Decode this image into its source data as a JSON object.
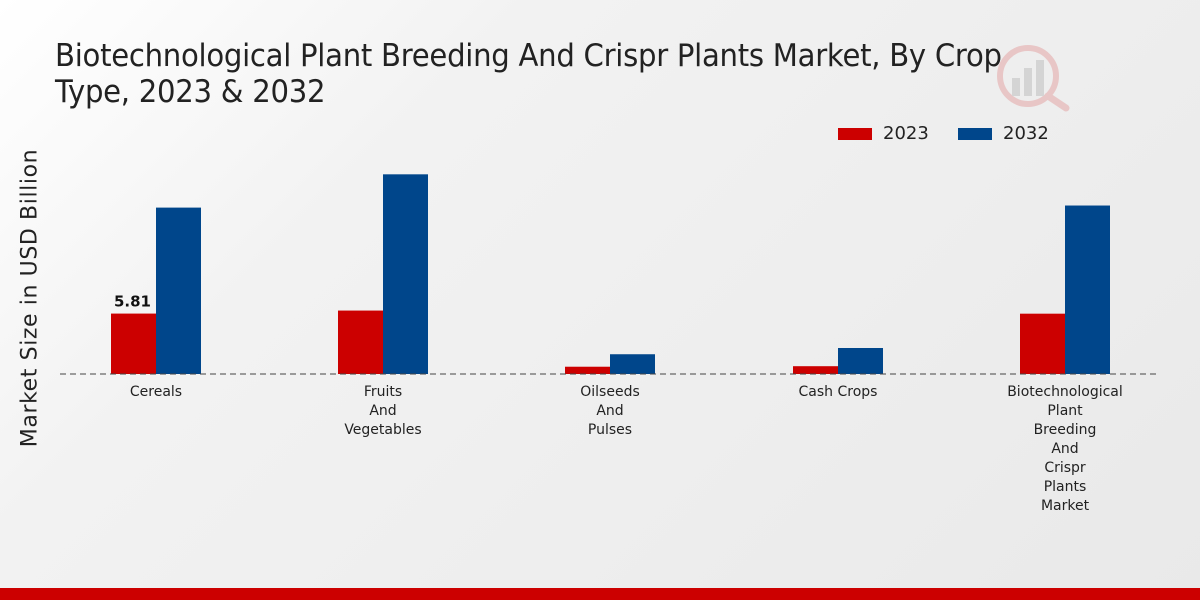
{
  "chart_data": {
    "type": "bar",
    "title": "Biotechnological Plant Breeding And Crispr Plants Market, By Crop Type, 2023 & 2032",
    "xlabel": "",
    "ylabel": "Market Size in USD Billion",
    "ylim": [
      0,
      25
    ],
    "categories": [
      [
        "Cereals"
      ],
      [
        "Fruits",
        "And",
        "Vegetables"
      ],
      [
        "Oilseeds",
        "And",
        "Pulses"
      ],
      [
        "Cash Crops"
      ],
      [
        "Biotechnological",
        "Plant",
        "Breeding",
        "And",
        "Crispr",
        "Plants",
        "Market"
      ]
    ],
    "series": [
      {
        "name": "2023",
        "color": "#cc0000",
        "values": [
          5.81,
          6.1,
          0.7,
          0.75,
          5.8
        ]
      },
      {
        "name": "2032",
        "color": "#00468b",
        "values": [
          16.0,
          19.2,
          1.9,
          2.5,
          16.2
        ]
      }
    ],
    "data_labels": [
      {
        "series": 0,
        "index": 0,
        "text": "5.81"
      }
    ],
    "legend_position": "top-right"
  }
}
